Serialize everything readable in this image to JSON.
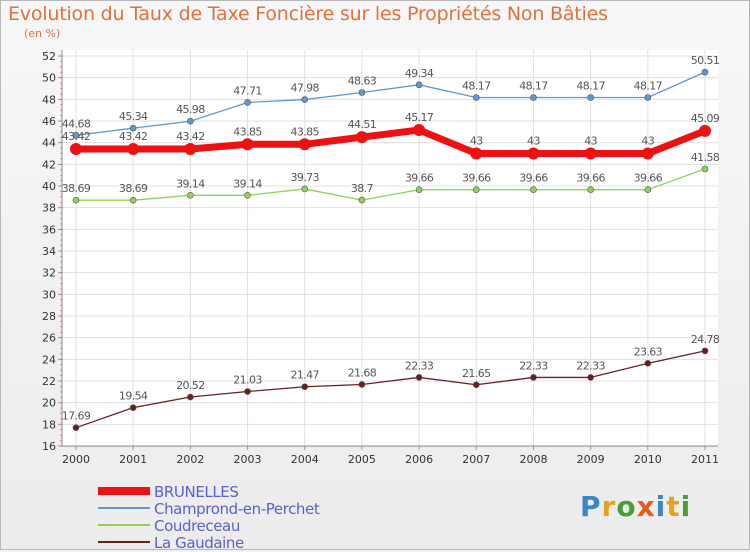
{
  "title": "Evolution du Taux de Taxe Foncière sur les Propriétés Non Bâties",
  "subtitle": "(en %)",
  "logo": {
    "letters": [
      "P",
      "r",
      "o",
      "x",
      "i",
      "t",
      "i"
    ],
    "colors": [
      "#3a86c8",
      "#e8a21e",
      "#4a9e3a",
      "#e85a1e",
      "#3a86c8",
      "#e8a21e",
      "#4a9e3a"
    ]
  },
  "chart_data": {
    "type": "line",
    "x": [
      "2000",
      "2001",
      "2002",
      "2003",
      "2004",
      "2005",
      "2006",
      "2007",
      "2008",
      "2009",
      "2010",
      "2011"
    ],
    "ylim": [
      16,
      52
    ],
    "yticks": [
      16,
      18,
      20,
      22,
      24,
      26,
      28,
      30,
      32,
      34,
      36,
      38,
      40,
      42,
      44,
      46,
      48,
      50,
      52
    ],
    "grid": true,
    "legend_position": "bottom-left",
    "series": [
      {
        "name": "BRUNELLES",
        "color": "#ee1111",
        "values": [
          43.42,
          43.42,
          43.42,
          43.85,
          43.85,
          44.51,
          45.17,
          43,
          43,
          43,
          43,
          45.09
        ],
        "labels": [
          "43.42",
          "43.42",
          "43.42",
          "43.85",
          "43.85",
          "44.51",
          "45.17",
          "43",
          "43",
          "43",
          "43",
          "45.09"
        ]
      },
      {
        "name": "Champrond-en-Perchet",
        "color": "#5b9bd5",
        "values": [
          44.68,
          45.34,
          45.98,
          47.71,
          47.98,
          48.63,
          49.34,
          48.17,
          48.17,
          48.17,
          48.17,
          50.51
        ],
        "labels": [
          "44.68",
          "45.34",
          "45.98",
          "47.71",
          "47.98",
          "48.63",
          "49.34",
          "48.17",
          "48.17",
          "48.17",
          "48.17",
          "50.51"
        ]
      },
      {
        "name": "Coudreceau",
        "color": "#8ed256",
        "values": [
          38.69,
          38.69,
          39.14,
          39.14,
          39.73,
          38.7,
          39.66,
          39.66,
          39.66,
          39.66,
          39.66,
          41.58
        ],
        "labels": [
          "38.69",
          "38.69",
          "39.14",
          "39.14",
          "39.73",
          "38.7",
          "39.66",
          "39.66",
          "39.66",
          "39.66",
          "39.66",
          "41.58"
        ]
      },
      {
        "name": "La Gaudaine",
        "color": "#6b1e22",
        "values": [
          17.69,
          19.54,
          20.52,
          21.03,
          21.47,
          21.68,
          22.33,
          21.65,
          22.33,
          22.33,
          23.63,
          24.78
        ],
        "labels": [
          "17.69",
          "19.54",
          "20.52",
          "21.03",
          "21.47",
          "21.68",
          "22.33",
          "21.65",
          "22.33",
          "22.33",
          "23.63",
          "24.78"
        ]
      }
    ]
  }
}
